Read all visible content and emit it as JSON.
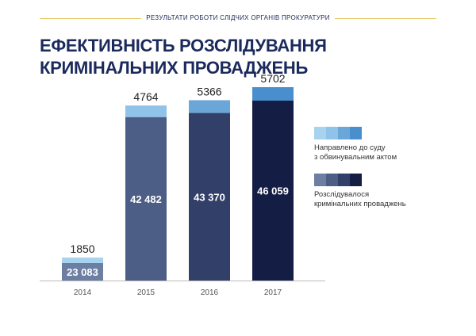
{
  "header": {
    "text": "РЕЗУЛЬТАТИ РОБОТИ СЛІДЧИХ ОРГАНІВ ПРОКУРАТУРИ"
  },
  "title": {
    "line1": "ЕФЕКТИВНІСТЬ РОЗСЛІДУВАННЯ",
    "line2": "КРИМІНАЛЬНИХ ПРОВАДЖЕНЬ"
  },
  "legend": {
    "indicted_line1": "Направлено до суду",
    "indicted_line2": "з обвинувальним актом",
    "investigated_line1": "Розслідувалося",
    "investigated_line2": "кримінальних проваджень"
  },
  "colors": {
    "investigated": [
      "#6c7fa3",
      "#4d5e86",
      "#313f69",
      "#141d44"
    ],
    "indicted": [
      "#a7d3ee",
      "#8fc3e8",
      "#6aa6d8",
      "#4a8fcd"
    ],
    "axis": "#bbbbbb",
    "header_rule": "#e5c45a"
  },
  "chart_data": {
    "type": "bar",
    "stacked": true,
    "categories": [
      "2014",
      "2015",
      "2016",
      "2017"
    ],
    "series": [
      {
        "name": "Розслідувалося кримінальних проваджень",
        "values": [
          23083,
          42482,
          43370,
          46059
        ],
        "labels": [
          "23 083",
          "42 482",
          "43 370",
          "46 059"
        ]
      },
      {
        "name": "Направлено до суду з обвинувальним актом",
        "values": [
          1850,
          4764,
          5366,
          5702
        ],
        "labels": [
          "1850",
          "4764",
          "5366",
          "5702"
        ]
      }
    ]
  }
}
